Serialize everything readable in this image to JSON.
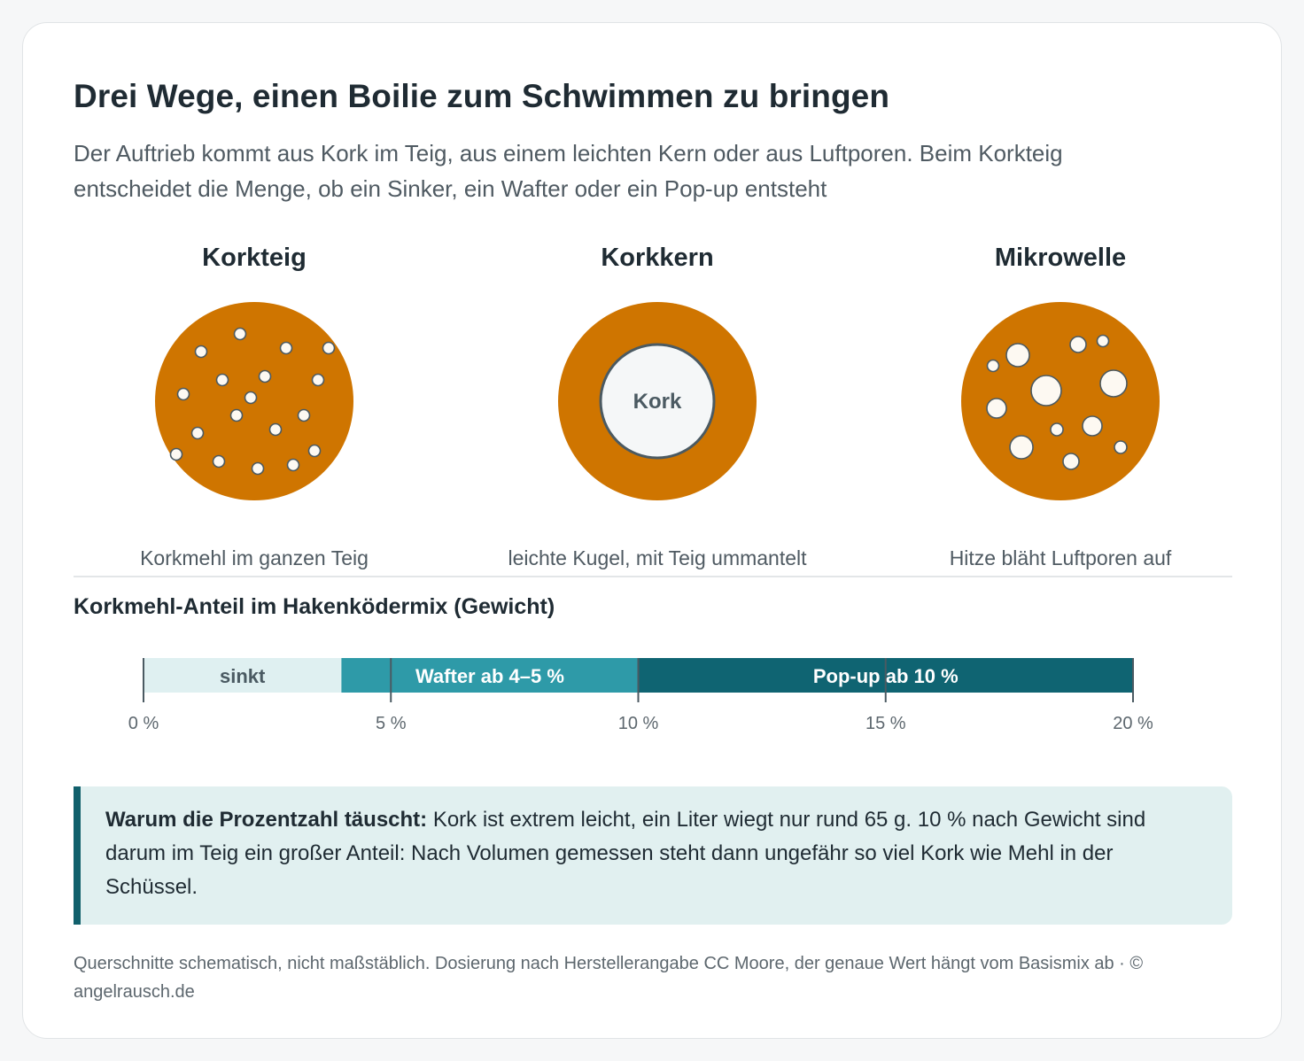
{
  "title": "Drei Wege, einen Boilie zum Schwimmen zu bringen",
  "subtitle": "Der Auftrieb kommt aus Kork im Teig, aus einem leichten Kern oder aus Luftporen. Beim Korkteig entscheidet die Menge, ob ein Sinker, ein Wafter oder ein Pop-up entsteht",
  "methods": [
    {
      "title": "Korkteig",
      "caption": "Korkmehl im ganzen Teig"
    },
    {
      "title": "Korkkern",
      "core_label": "Kork",
      "caption": "leichte Kugel, mit Teig ummantelt"
    },
    {
      "title": "Mikrowelle",
      "caption": "Hitze bläht Luftporen auf"
    }
  ],
  "scale": {
    "title": "Korkmehl-Anteil im Hakenködermix (Gewicht)",
    "segments": [
      {
        "label": "sinkt",
        "from": 0,
        "to": 4,
        "color": "#dff0f1",
        "text_color": "#4a5a62"
      },
      {
        "label": "Wafter ab 4–5 %",
        "from": 4,
        "to": 10,
        "color": "#2e9aa8",
        "text_color": "#ffffff"
      },
      {
        "label": "Pop-up ab 10 %",
        "from": 10,
        "to": 20,
        "color": "#0f6472",
        "text_color": "#ffffff"
      }
    ],
    "ticks": [
      {
        "value": 0,
        "label": "0 %"
      },
      {
        "value": 5,
        "label": "5 %"
      },
      {
        "value": 10,
        "label": "10 %"
      },
      {
        "value": 15,
        "label": "15 %"
      },
      {
        "value": 20,
        "label": "20 %"
      }
    ],
    "max": 20
  },
  "note": {
    "lead": "Warum die Prozentzahl täuscht:",
    "text": " Kork ist extrem leicht, ein Liter wiegt nur rund 65 g. 10 % nach Gewicht sind darum im Teig ein großer Anteil: Nach Volumen gemessen steht dann ungefähr so viel Kork wie Mehl in der Schüssel."
  },
  "footer": "Querschnitte schematisch, nicht maßstäblich. Dosierung nach Herstellerangabe CC Moore, der genaue Wert hängt vom Basismix ab · © angelrausch.de",
  "colors": {
    "dough": "#cf7500",
    "pore": "#fdf9f2",
    "core": "#f5f7f8",
    "outline": "#4b5a62"
  }
}
